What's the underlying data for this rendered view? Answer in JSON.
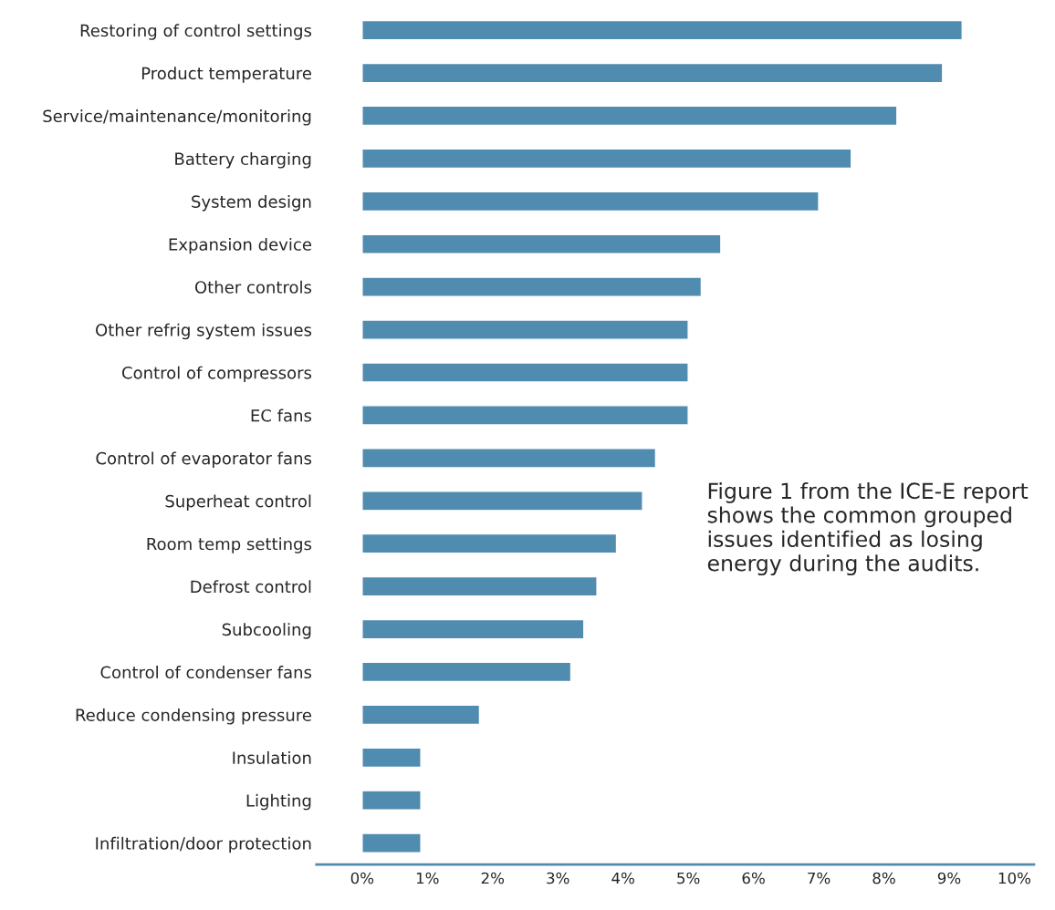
{
  "chart_data": {
    "type": "bar",
    "orientation": "horizontal",
    "categories": [
      "Restoring of control settings",
      "Product temperature",
      "Service/maintenance/monitoring",
      "Battery charging",
      "System design",
      "Expansion device",
      "Other controls",
      "Other refrig system issues",
      "Control of compressors",
      "EC fans",
      "Control of evaporator fans",
      "Superheat control",
      "Room temp settings",
      "Defrost control",
      "Subcooling",
      "Control of condenser fans",
      "Reduce condensing pressure",
      "Insulation",
      "Lighting",
      "Infiltration/door protection"
    ],
    "values": [
      9.2,
      8.9,
      8.2,
      7.5,
      7.0,
      5.5,
      5.2,
      5.0,
      5.0,
      5.0,
      4.5,
      4.3,
      3.9,
      3.6,
      3.4,
      3.2,
      1.8,
      0.9,
      0.9,
      0.9
    ],
    "color": "#508cb0",
    "xlim": [
      -0.7,
      10.3
    ],
    "xticks": [
      {
        "value": 0,
        "label": "0%"
      },
      {
        "value": 1,
        "label": "1%"
      },
      {
        "value": 2,
        "label": "2%"
      },
      {
        "value": 3,
        "label": "3%"
      },
      {
        "value": 4,
        "label": "4%"
      },
      {
        "value": 5,
        "label": "5%"
      },
      {
        "value": 6,
        "label": "6%"
      },
      {
        "value": 7,
        "label": "7%"
      },
      {
        "value": 8,
        "label": "8%"
      },
      {
        "value": 9,
        "label": "9%"
      },
      {
        "value": 10,
        "label": "10%"
      }
    ],
    "grid": false,
    "legend": false,
    "annotations": [
      "Figure 1 from the ICE-E report shows the common grouped issues identified as losing energy during the audits."
    ]
  }
}
